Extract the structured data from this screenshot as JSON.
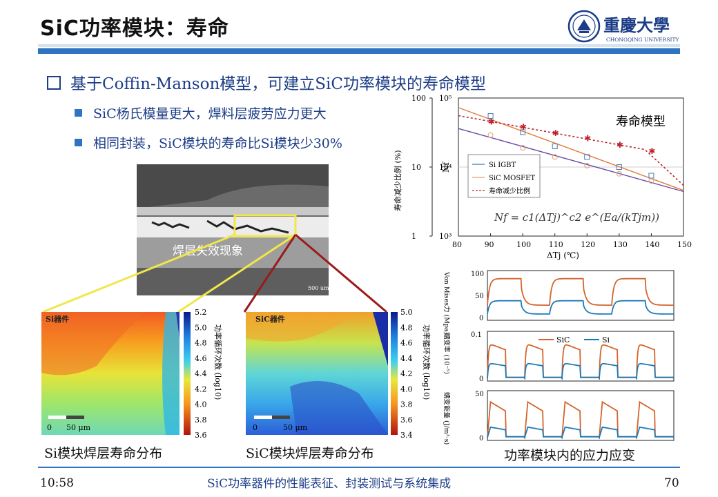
{
  "header": {
    "title": "SiC功率模块：寿命",
    "logo_cn": "重慶大學",
    "logo_en": "CHONGQING UNIVERSITY"
  },
  "bullets": {
    "main": "基于Coffin-Manson模型，可建立SiC功率模块的寿命模型",
    "sub1": "SiC杨氏模量更大，焊料层疲劳应力更大",
    "sub2": "相同封装，SiC模块的寿命比Si模块少30%"
  },
  "micrograph": {
    "label": "焊层失效现象",
    "scale": "500 um"
  },
  "heatmap_si": {
    "corner": "Si器件",
    "scale_labels": [
      "0",
      "50 μm"
    ],
    "colorbar_ticks": [
      "5.2",
      "5.0",
      "4.8",
      "4.6",
      "4.4",
      "4.2",
      "4.0",
      "3.8",
      "3.6"
    ],
    "colorbar_label": "功率循环次数 (log10)",
    "caption": "Si模块焊层寿命分布"
  },
  "heatmap_sic": {
    "corner": "SiC器件",
    "scale_labels": [
      "0",
      "50 μm"
    ],
    "colorbar_ticks": [
      "5.0",
      "4.8",
      "4.6",
      "4.4",
      "4.2",
      "4.0",
      "3.8",
      "3.6",
      "3.4"
    ],
    "colorbar_label": "功率循环次数 (log10)",
    "caption": "SiC模块焊层寿命分布"
  },
  "chart_data": [
    {
      "type": "line",
      "title": "寿命模型",
      "xlabel": "ΔTj (℃)",
      "ylabel_left": "寿命减少比例 (%)",
      "ylabel_right": "Nf",
      "x_ticks": [
        "80",
        "90",
        "100",
        "110",
        "120",
        "130",
        "140",
        "150"
      ],
      "y_left_ticks": [
        "100",
        "10",
        "1"
      ],
      "y_right_ticks": [
        "10⁵",
        "10⁴",
        "10³"
      ],
      "xlim": [
        80,
        150
      ],
      "ylim_log": [
        1000,
        100000
      ],
      "series": [
        {
          "name": "Si IGBT",
          "x": [
            90,
            100,
            110,
            120,
            130,
            140
          ],
          "y": [
            55000,
            32000,
            20000,
            14000,
            10000,
            7500
          ],
          "color": "#4a7ab8",
          "marker": "square"
        },
        {
          "name": "SiC MOSFET",
          "x": [
            90,
            100,
            110,
            120,
            130,
            140
          ],
          "y": [
            29000,
            19000,
            14000,
            10500,
            8000,
            6300
          ],
          "color": "#e0a070",
          "marker": "circle"
        },
        {
          "name": "寿命减少比例",
          "x": [
            90,
            100,
            110,
            120,
            130,
            140
          ],
          "y": [
            45000,
            38000,
            31000,
            26000,
            21000,
            17000
          ],
          "color": "#c0202a",
          "marker": "star"
        }
      ],
      "formula": "Nf = c1(ΔTj)^c2 e^(Ea/(kTjm))"
    },
    {
      "type": "line",
      "caption": "功率模块内的应力应变",
      "panels": [
        {
          "ylabel": "Von Mises力 (Mpa)",
          "y_ticks": [
            "100",
            "50",
            "0"
          ],
          "ylim": [
            0,
            100
          ]
        },
        {
          "ylabel": "蠕变率 (10⁻⁵)",
          "y_ticks": [
            "0.1",
            "0"
          ],
          "ylim": [
            0,
            0.14
          ]
        },
        {
          "ylabel": "蠕变能量 (J/m³·s)",
          "y_ticks": [
            "50",
            "0"
          ],
          "ylim": [
            0,
            70
          ]
        }
      ],
      "series": [
        {
          "name": "SiC",
          "color": "#d4642c"
        },
        {
          "name": "Si",
          "color": "#1a7ab8"
        }
      ]
    }
  ],
  "footer": {
    "time": "10:58",
    "center": "SiC功率器件的性能表征、封装测试与系统集成",
    "page": "70"
  }
}
